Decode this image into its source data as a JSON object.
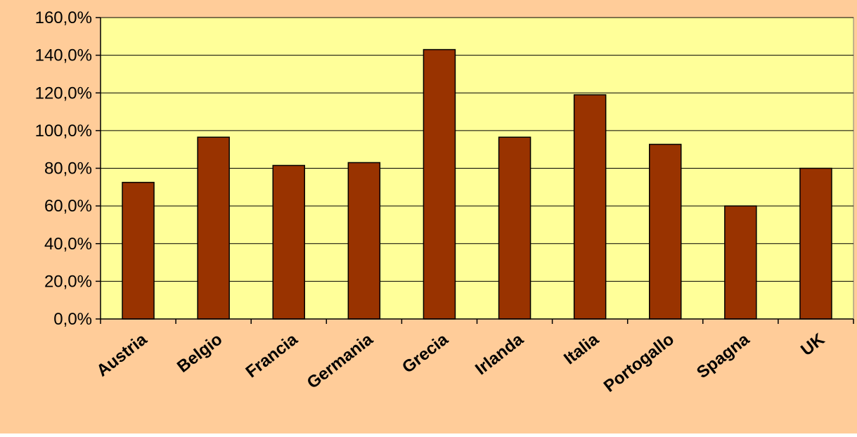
{
  "chart_data": {
    "type": "bar",
    "title": "",
    "xlabel": "",
    "ylabel": "",
    "categories": [
      "Austria",
      "Belgio",
      "Francia",
      "Germania",
      "Grecia",
      "Irlanda",
      "Italia",
      "Portogallo",
      "Spagna",
      "UK"
    ],
    "values": [
      72.5,
      96.5,
      81.5,
      83.0,
      143.0,
      96.5,
      119.0,
      92.7,
      60.0,
      80.0
    ],
    "ylim": [
      0,
      160
    ],
    "yticks": [
      0,
      20,
      40,
      60,
      80,
      100,
      120,
      140,
      160
    ],
    "ytick_labels": [
      "0,0%",
      "20,0%",
      "40,0%",
      "60,0%",
      "80,0%",
      "100,0%",
      "120,0%",
      "140,0%",
      "160,0%"
    ],
    "grid": "horizontal",
    "legend": "none",
    "colors": {
      "background": "#FFCC99",
      "plot_area": "#FFFF99",
      "bar_fill": "#993300",
      "bar_stroke": "#000000",
      "grid": "#000000"
    }
  }
}
